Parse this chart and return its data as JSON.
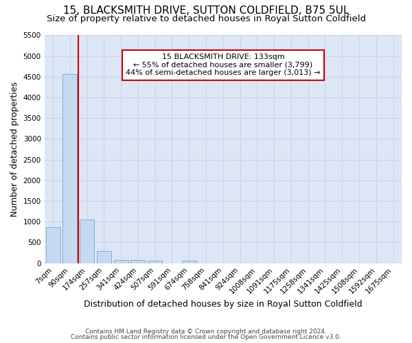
{
  "title_line1": "15, BLACKSMITH DRIVE, SUTTON COLDFIELD, B75 5UL",
  "title_line2": "Size of property relative to detached houses in Royal Sutton Coldfield",
  "xlabel": "Distribution of detached houses by size in Royal Sutton Coldfield",
  "ylabel": "Number of detached properties",
  "footnote_line1": "Contains HM Land Registry data © Crown copyright and database right 2024.",
  "footnote_line2": "Contains public sector information licensed under the Open Government Licence v3.0.",
  "categories": [
    "7sqm",
    "90sqm",
    "174sqm",
    "257sqm",
    "341sqm",
    "424sqm",
    "507sqm",
    "591sqm",
    "674sqm",
    "758sqm",
    "841sqm",
    "924sqm",
    "1008sqm",
    "1091sqm",
    "1175sqm",
    "1258sqm",
    "1341sqm",
    "1425sqm",
    "1508sqm",
    "1592sqm",
    "1675sqm"
  ],
  "values": [
    880,
    4570,
    1060,
    290,
    85,
    80,
    55,
    0,
    55,
    0,
    0,
    0,
    0,
    0,
    0,
    0,
    0,
    0,
    0,
    0,
    0
  ],
  "bar_color": "#c5d9f0",
  "bar_edge_color": "#7ab0d8",
  "vline_x": 1.5,
  "vline_color": "#cc0000",
  "annotation_line1": "15 BLACKSMITH DRIVE: 133sqm",
  "annotation_line2": "← 55% of detached houses are smaller (3,799)",
  "annotation_line3": "44% of semi-detached houses are larger (3,013) →",
  "annotation_box_color": "#cc0000",
  "annotation_bg": "white",
  "ylim": [
    0,
    5500
  ],
  "yticks": [
    0,
    500,
    1000,
    1500,
    2000,
    2500,
    3000,
    3500,
    4000,
    4500,
    5000,
    5500
  ],
  "grid_color": "#c8d4e8",
  "bg_color": "#dce6f5",
  "title_fontsize": 11,
  "subtitle_fontsize": 9.5,
  "xlabel_fontsize": 9,
  "ylabel_fontsize": 9,
  "tick_fontsize": 7.5,
  "annotation_fontsize": 8,
  "footnote_fontsize": 6.5
}
